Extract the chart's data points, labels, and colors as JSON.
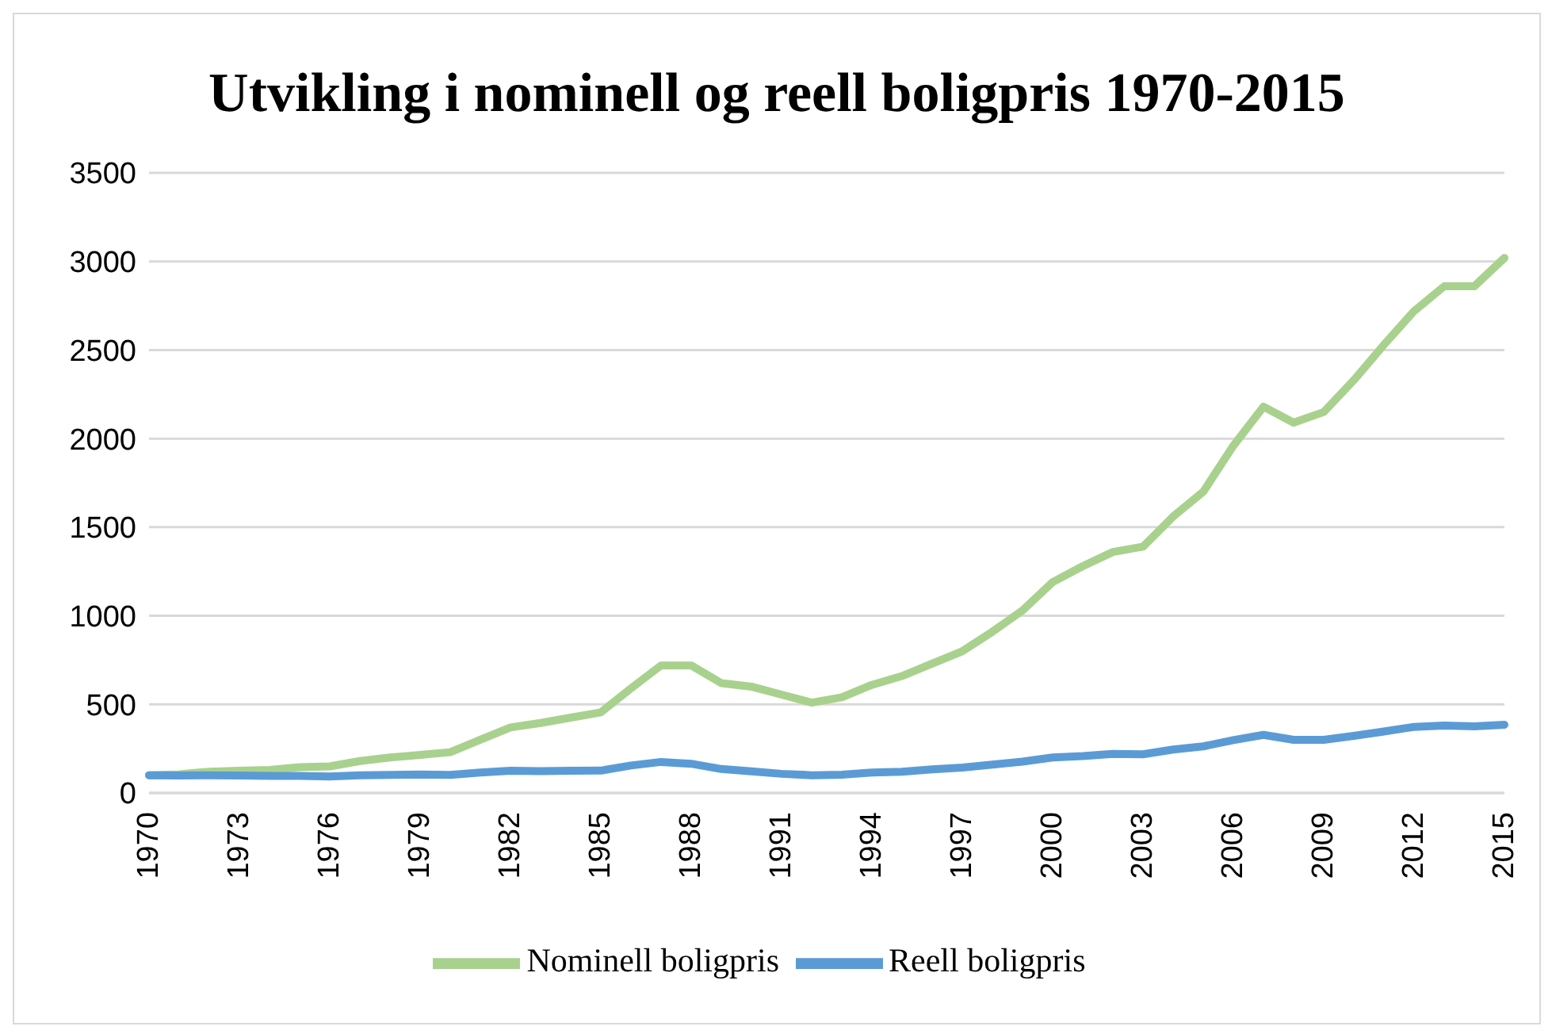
{
  "chart_data": {
    "type": "line",
    "title": "Utvikling i nominell og reell boligpris 1970-2015",
    "categories": [
      "1970",
      null,
      null,
      "1973",
      null,
      null,
      "1976",
      null,
      null,
      "1979",
      null,
      null,
      "1982",
      null,
      null,
      "1985",
      null,
      null,
      "1988",
      null,
      null,
      "1991",
      null,
      null,
      "1994",
      null,
      null,
      "1997",
      null,
      null,
      "2000",
      null,
      null,
      "2003",
      null,
      null,
      "2006",
      null,
      null,
      "2009",
      null,
      null,
      "2012",
      null,
      null,
      "2015"
    ],
    "series": [
      {
        "name": "Nominell boligpris",
        "color": "#a9d18e",
        "values": [
          100,
          105,
          120,
          125,
          130,
          145,
          150,
          180,
          200,
          215,
          230,
          300,
          370,
          395,
          425,
          455,
          590,
          720,
          720,
          620,
          600,
          555,
          510,
          540,
          610,
          660,
          730,
          800,
          910,
          1030,
          1190,
          1280,
          1360,
          1390,
          1560,
          1700,
          1960,
          2180,
          2090,
          2150,
          2330,
          2530,
          2720,
          2860,
          2860,
          3020
        ]
      },
      {
        "name": "Reell boligpris",
        "color": "#5b9bd5",
        "values": [
          100,
          98,
          100,
          98,
          96,
          96,
          93,
          100,
          102,
          104,
          102,
          115,
          125,
          123,
          125,
          126,
          155,
          175,
          165,
          135,
          122,
          108,
          100,
          103,
          115,
          120,
          133,
          143,
          160,
          177,
          200,
          208,
          220,
          218,
          245,
          263,
          298,
          328,
          300,
          300,
          322,
          347,
          373,
          380,
          376,
          385
        ]
      }
    ],
    "ylim": [
      0,
      3500
    ],
    "yticks": [
      0,
      500,
      1000,
      1500,
      2000,
      2500,
      3000,
      3500
    ],
    "grid": "y",
    "legend": "bottom",
    "marker": "none",
    "line_style": "solid"
  }
}
